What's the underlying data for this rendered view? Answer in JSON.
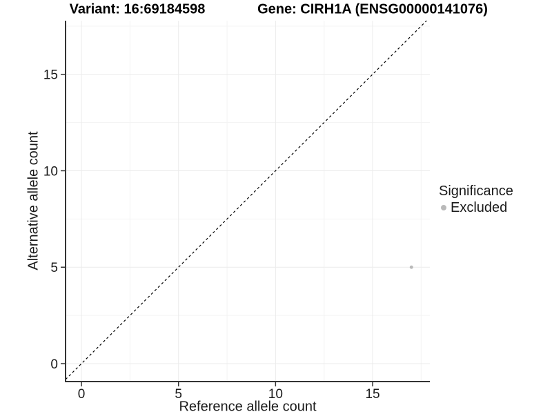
{
  "chart_data": {
    "type": "scatter",
    "title_left": "Variant: 16:69184598",
    "title_right": "Gene: CIRH1A (ENSG00000141076)",
    "xlabel": "Reference allele count",
    "ylabel": "Alternative allele count",
    "xlim": [
      -0.82,
      17.95
    ],
    "ylim": [
      -0.93,
      17.78
    ],
    "x_ticks": [
      0,
      5,
      10,
      15
    ],
    "y_ticks": [
      0,
      5,
      10,
      15
    ],
    "x_minor_ticks": [
      2.5,
      7.5,
      12.5,
      17.5
    ],
    "y_minor_ticks": [
      2.5,
      7.5,
      12.5,
      17.5
    ],
    "grid": "major and minor, light gray, white panel",
    "points": [
      {
        "x": 17,
        "y": 5,
        "series": "Excluded"
      }
    ],
    "reference_line": {
      "type": "identity",
      "style": "dashed",
      "color": "#000000"
    },
    "legend": {
      "title": "Significance",
      "position": "right",
      "items": [
        {
          "label": "Excluded",
          "color": "#b9b9b9"
        }
      ]
    },
    "colors": {
      "point": "#b9b9b9",
      "grid_major": "#ebebeb",
      "grid_minor": "#f3f3f3",
      "axis_line": "#333333",
      "tick": "#333333",
      "tick_label": "#1a1a1a"
    }
  }
}
